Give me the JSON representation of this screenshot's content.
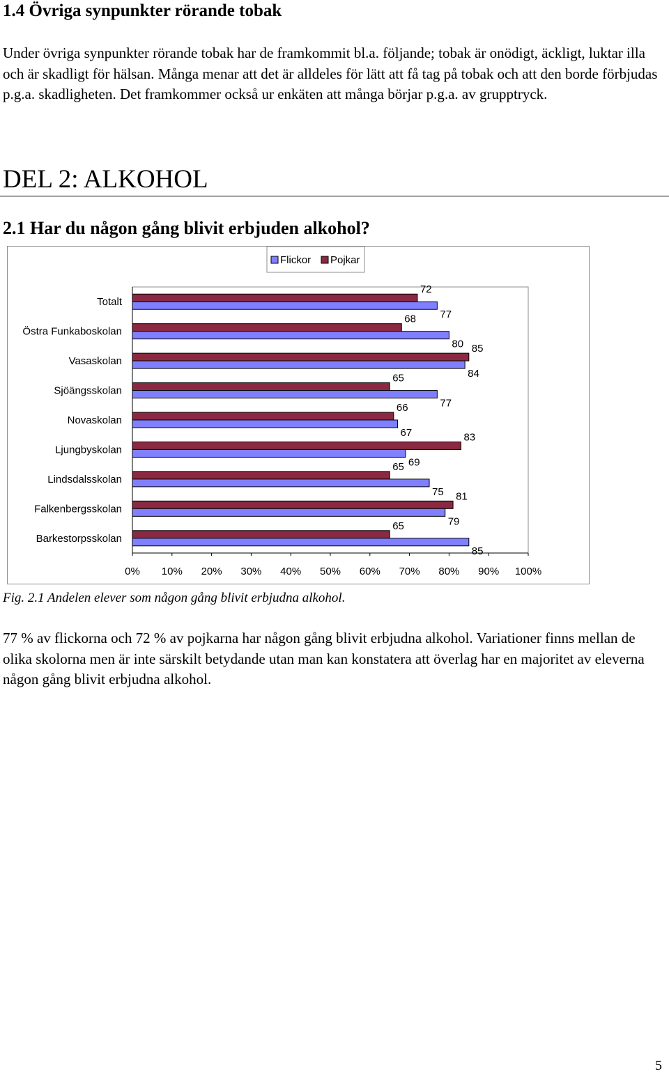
{
  "section_1_4": {
    "heading": "1.4 Övriga synpunkter rörande tobak",
    "paragraph": "Under övriga synpunkter rörande tobak har de framkommit bl.a. följande; tobak är onödigt, äckligt, luktar illa och är skadligt för hälsan. Många menar att det är alldeles för lätt att få tag på tobak och att den borde förbjudas p.g.a. skadligheten. Det framkommer också ur enkäten att många börjar p.g.a. av grupptryck."
  },
  "part_heading": "DEL 2: ALKOHOL",
  "section_2_1": {
    "heading": "2.1 Har du någon gång blivit erbjuden alkohol?",
    "caption": "Fig. 2.1 Andelen elever som någon gång blivit erbjudna alkohol.",
    "paragraph": "77 % av flickorna och 72 % av pojkarna har någon gång blivit erbjudna alkohol. Variationer finns mellan de olika skolorna men är inte särskilt betydande utan man kan konstatera att överlag har en majoritet av eleverna någon gång blivit erbjudna alkohol."
  },
  "chart_data": {
    "type": "bar",
    "orientation": "horizontal",
    "categories": [
      "Totalt",
      "Östra Funkaboskolan",
      "Vasaskolan",
      "Sjöängsskolan",
      "Novaskolan",
      "Ljungbyskolan",
      "Lindsdalsskolan",
      "Falkenbergsskolan",
      "Barkestorpsskolan"
    ],
    "series": [
      {
        "name": "Pojkar",
        "color": "#8b2942",
        "values": [
          72,
          68,
          85,
          65,
          66,
          83,
          65,
          81,
          65
        ]
      },
      {
        "name": "Flickor",
        "color": "#8080ff",
        "values": [
          77,
          80,
          84,
          77,
          67,
          69,
          75,
          79,
          85
        ]
      }
    ],
    "legend_order": [
      "Flickor",
      "Pojkar"
    ],
    "legend_position": "top",
    "xlim": [
      0,
      100
    ],
    "x_ticks": [
      "0%",
      "10%",
      "20%",
      "30%",
      "40%",
      "50%",
      "60%",
      "70%",
      "80%",
      "90%",
      "100%"
    ],
    "grid": false
  },
  "page_number": "5"
}
